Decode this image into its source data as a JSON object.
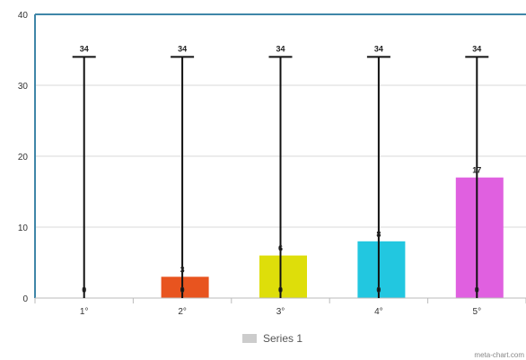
{
  "chart_data": {
    "type": "bar",
    "categories": [
      "1°",
      "2°",
      "3°",
      "4°",
      "5°"
    ],
    "values": [
      0,
      3,
      6,
      8,
      17
    ],
    "colors": [
      "#999999",
      "#e8541f",
      "#dede0a",
      "#22c7e0",
      "#e060e0"
    ],
    "error_bars": {
      "low": [
        0,
        0,
        0,
        0,
        0
      ],
      "high": [
        34,
        34,
        34,
        34,
        34
      ]
    },
    "value_labels": [
      "0",
      "3",
      "6",
      "8",
      "17"
    ],
    "low_labels": [
      "0",
      "0",
      "0",
      "0",
      "0"
    ],
    "high_labels": [
      "34",
      "34",
      "34",
      "34",
      "34"
    ],
    "ylim": [
      0,
      40
    ],
    "yticks": [
      0,
      10,
      20,
      30,
      40
    ],
    "grid": true,
    "legend": {
      "position": "bottom",
      "entries": [
        {
          "label": "Series 1",
          "color": "#cccccc"
        }
      ]
    }
  },
  "credit": "meta-chart.com"
}
